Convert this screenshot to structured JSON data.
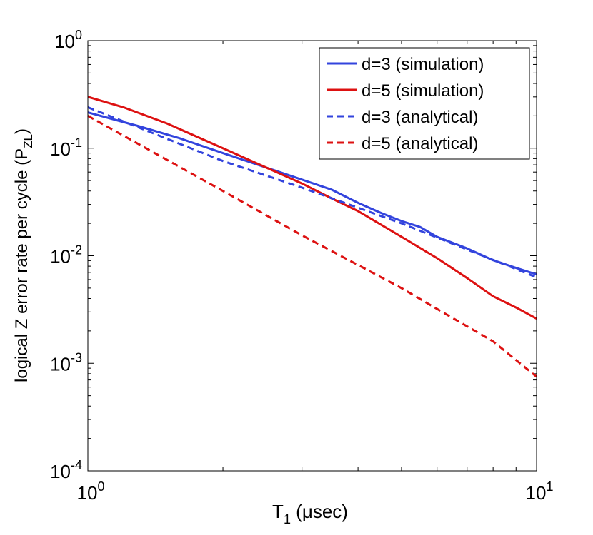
{
  "chart_data": {
    "type": "line",
    "x_scale": "log",
    "y_scale": "log",
    "xlim": [
      1,
      10
    ],
    "ylim": [
      0.0001,
      1
    ],
    "xlabel": "T",
    "xlabel_sub": "1",
    "xlabel_unit": " (μsec)",
    "ylabel": "logical Z error rate per cycle (P",
    "ylabel_sub": "ZL",
    "ylabel_close": ")",
    "x_ticks": [
      {
        "value": 1,
        "base": "10",
        "exp": "0"
      },
      {
        "value": 10,
        "base": "10",
        "exp": "1"
      }
    ],
    "y_ticks": [
      {
        "value": 1,
        "base": "10",
        "exp": "0"
      },
      {
        "value": 0.1,
        "base": "10",
        "exp": "-1"
      },
      {
        "value": 0.01,
        "base": "10",
        "exp": "-2"
      },
      {
        "value": 0.001,
        "base": "10",
        "exp": "-3"
      },
      {
        "value": 0.0001,
        "base": "10",
        "exp": "-4"
      }
    ],
    "legend_position": "top-right",
    "grid": false,
    "series": [
      {
        "name": "d=3 (simulation)",
        "color": "#3344dd",
        "style": "solid",
        "x": [
          1.0,
          1.3,
          1.6,
          2.0,
          2.5,
          3.0,
          3.5,
          4.0,
          4.5,
          5.0,
          5.5,
          6.0,
          7.0,
          8.0,
          9.0,
          10.0
        ],
        "y": [
          0.215,
          0.16,
          0.124,
          0.09,
          0.066,
          0.051,
          0.041,
          0.031,
          0.025,
          0.021,
          0.0185,
          0.015,
          0.0117,
          0.0091,
          0.0077,
          0.0067
        ]
      },
      {
        "name": "d=5 (simulation)",
        "color": "#dd1111",
        "style": "solid",
        "x": [
          1.0,
          1.2,
          1.5,
          2.0,
          2.5,
          3.0,
          3.5,
          4.0,
          5.0,
          6.0,
          7.0,
          8.0,
          9.0,
          10.0
        ],
        "y": [
          0.3,
          0.24,
          0.17,
          0.1,
          0.066,
          0.047,
          0.034,
          0.026,
          0.015,
          0.0095,
          0.0062,
          0.0042,
          0.0033,
          0.0026
        ]
      },
      {
        "name": "d=3 (analytical)",
        "color": "#3344dd",
        "style": "dashed",
        "x": [
          1.0,
          2.0,
          3.0,
          5.0,
          10.0
        ],
        "y": [
          0.24,
          0.076,
          0.043,
          0.02,
          0.0063
        ]
      },
      {
        "name": "d=5 (analytical)",
        "color": "#dd1111",
        "style": "dashed",
        "x": [
          1.0,
          2.0,
          3.0,
          4.0,
          5.0,
          6.0,
          8.0,
          10.0
        ],
        "y": [
          0.2,
          0.04,
          0.0155,
          0.0082,
          0.005,
          0.0032,
          0.0016,
          0.00075
        ]
      }
    ]
  }
}
